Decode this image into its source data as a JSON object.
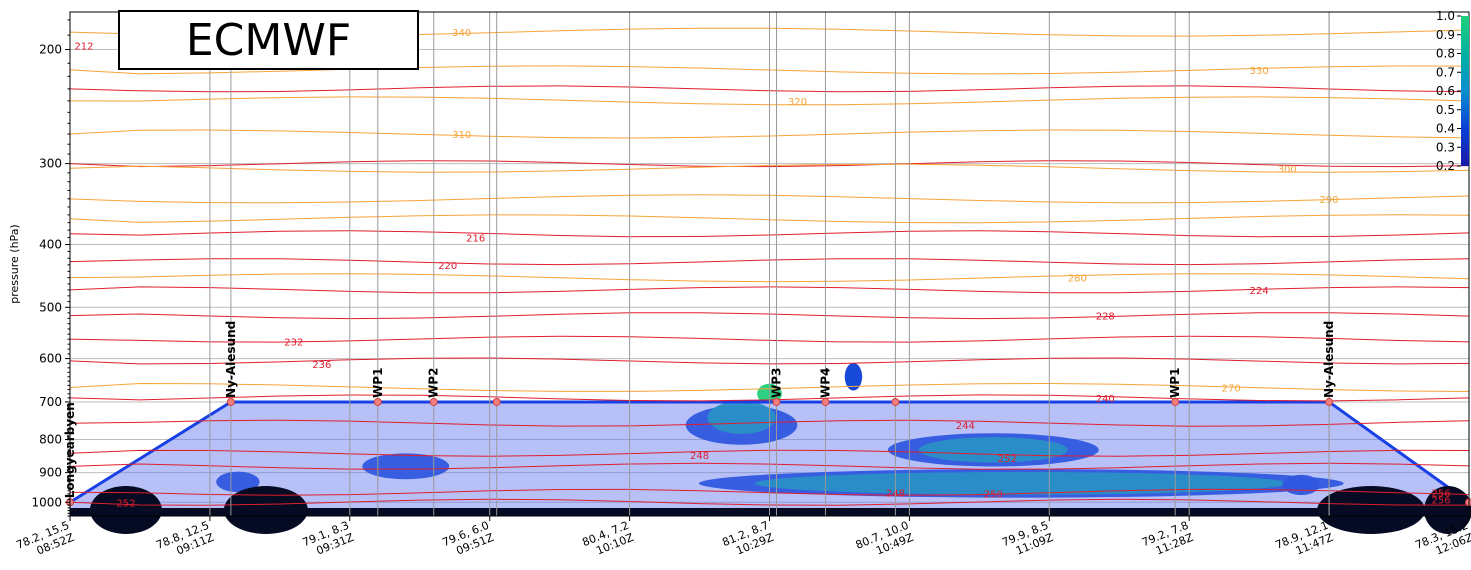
{
  "title": "ECMWF",
  "chart_data": {
    "type": "area",
    "title": "ECMWF",
    "xlabel": "",
    "ylabel": "pressure (hPa)",
    "y_axis": {
      "scale": "log",
      "inverted": true,
      "ylim": [
        1050,
        175
      ],
      "ticks": [
        200,
        300,
        400,
        500,
        600,
        700,
        800,
        900,
        1000
      ]
    },
    "x_ticks": [
      {
        "line1": "78.2, 15.5",
        "line2": "08:52Z"
      },
      {
        "line1": "78.8, 12.5",
        "line2": "09:11Z"
      },
      {
        "line1": "79.1, 8.3",
        "line2": "09:31Z"
      },
      {
        "line1": "79.6, 6.0",
        "line2": "09:51Z"
      },
      {
        "line1": "80.4, 7.2",
        "line2": "10:10Z"
      },
      {
        "line1": "81.2, 8.7",
        "line2": "10:29Z"
      },
      {
        "line1": "80.7, 10.0",
        "line2": "10:49Z"
      },
      {
        "line1": "79.9, 8.5",
        "line2": "11:09Z"
      },
      {
        "line1": "79.2, 7.8",
        "line2": "11:28Z"
      },
      {
        "line1": "78.9, 12.1",
        "line2": "11:47Z"
      },
      {
        "line1": "78.3, 15.2",
        "line2": "12:06Z"
      }
    ],
    "colorbar": {
      "ticks": [
        "1.0",
        "0.9",
        "0.8",
        "0.7",
        "0.6",
        "0.5",
        "0.4",
        "0.3",
        "0.2"
      ]
    },
    "temperature_labels": [
      "212",
      "216",
      "220",
      "224",
      "228",
      "232",
      "236",
      "240",
      "244",
      "248",
      "248",
      "250",
      "252",
      "252",
      "256",
      "256"
    ],
    "theta_labels": [
      "340",
      "330",
      "320",
      "310",
      "300",
      "290",
      "280",
      "270"
    ],
    "waypoints": [
      {
        "label": "Longyearbyen",
        "x": 0.0,
        "p": 1000
      },
      {
        "label": "Ny-Alesund",
        "x": 0.115,
        "p": 700
      },
      {
        "label": "WP1",
        "x": 0.22,
        "p": 700
      },
      {
        "label": "WP2",
        "x": 0.26,
        "p": 700
      },
      {
        "label": "",
        "x": 0.305,
        "p": 700
      },
      {
        "label": "WP3",
        "x": 0.505,
        "p": 700
      },
      {
        "label": "WP4",
        "x": 0.54,
        "p": 700
      },
      {
        "label": "",
        "x": 0.59,
        "p": 700
      },
      {
        "label": "WP1",
        "x": 0.79,
        "p": 700
      },
      {
        "label": "Ny-Alesund",
        "x": 0.9,
        "p": 700
      },
      {
        "label": "",
        "x": 1.0,
        "p": 1000
      }
    ]
  }
}
